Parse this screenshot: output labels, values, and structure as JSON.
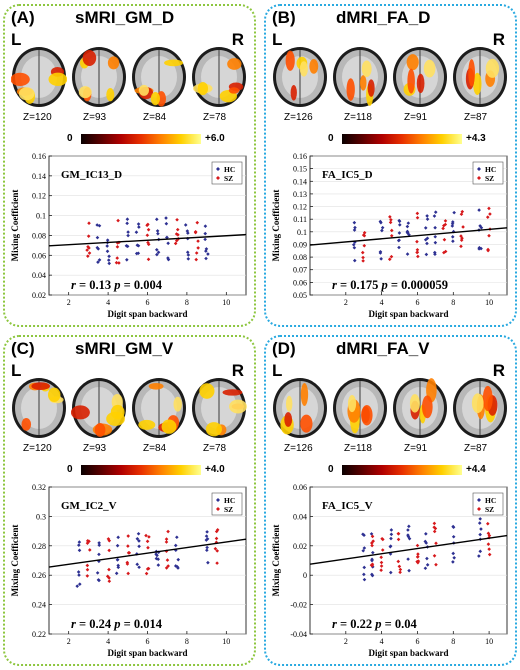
{
  "panels": [
    {
      "label": "(A)",
      "title": "sMRI_GM_D",
      "left_label": "L",
      "right_label": "R",
      "slices": [
        "Z=120",
        "Z=93",
        "Z=84",
        "Z=78"
      ],
      "cbar_min": "0",
      "cbar_max": "+6.0",
      "border_color": "#8dc63f"
    },
    {
      "label": "(B)",
      "title": "dMRI_FA_D",
      "left_label": "L",
      "right_label": "R",
      "slices": [
        "Z=126",
        "Z=118",
        "Z=91",
        "Z=87"
      ],
      "cbar_min": "0",
      "cbar_max": "+4.3",
      "border_color": "#29a9e0"
    },
    {
      "label": "(C)",
      "title": "sMRI_GM_V",
      "left_label": "L",
      "right_label": "R",
      "slices": [
        "Z=120",
        "Z=93",
        "Z=84",
        "Z=78"
      ],
      "cbar_min": "0",
      "cbar_max": "+4.0",
      "border_color": "#8dc63f"
    },
    {
      "label": "(D)",
      "title": "dMRI_FA_V",
      "left_label": "L",
      "right_label": "R",
      "slices": [
        "Z=126",
        "Z=118",
        "Z=91",
        "Z=87"
      ],
      "cbar_min": "0",
      "cbar_max": "+4.4",
      "border_color": "#29a9e0"
    }
  ],
  "chart_data": [
    {
      "type": "scatter",
      "title": "GM_IC13_D",
      "xlabel": "Digit span backward",
      "ylabel": "Mixing Coefficient",
      "xlim": [
        1,
        11
      ],
      "ylim": [
        0.02,
        0.16
      ],
      "xticks": [
        "2",
        "4",
        "6",
        "8",
        "10"
      ],
      "yticks": [
        "0.02",
        "0.04",
        "0.06",
        "0.08",
        "0.1",
        "0.12",
        "0.14",
        "0.16"
      ],
      "legend": [
        "HC",
        "SZ"
      ],
      "series_colors": [
        "#2e3192",
        "#d7191c"
      ],
      "stats": {
        "r": "0.13",
        "p": "0.004"
      },
      "fit": {
        "x": [
          1,
          11
        ],
        "y": [
          0.0695,
          0.0808
        ]
      },
      "scatter": {
        "hc_x": [
          3.5,
          4,
          5,
          5.5,
          6.5,
          7,
          8,
          9
        ],
        "sz_x": [
          3,
          4.5,
          6,
          7.5,
          8.5
        ]
      }
    },
    {
      "type": "scatter",
      "title": "FA_IC5_D",
      "xlabel": "Digit span backward",
      "ylabel": "Mixing Coefficient",
      "xlim": [
        0,
        11
      ],
      "ylim": [
        0.05,
        0.16
      ],
      "xticks": [
        "2",
        "4",
        "6",
        "8",
        "10"
      ],
      "yticks": [
        "0.05",
        "0.06",
        "0.07",
        "0.08",
        "0.09",
        "0.1",
        "0.11",
        "0.12",
        "0.13",
        "0.14",
        "0.15",
        "0.16"
      ],
      "legend": [
        "HC",
        "SZ"
      ],
      "series_colors": [
        "#2e3192",
        "#d7191c"
      ],
      "stats": {
        "r": "0.175",
        "p": "0.000059"
      },
      "fit": {
        "x": [
          0,
          11
        ],
        "y": [
          0.0895,
          0.1032
        ]
      },
      "scatter": {
        "hc_x": [
          2.5,
          4,
          5,
          5.5,
          6.5,
          7,
          8,
          9.5
        ],
        "sz_x": [
          3,
          4.5,
          6,
          7.5,
          8.5,
          10
        ]
      }
    },
    {
      "type": "scatter",
      "title": "GM_IC2_V",
      "xlabel": "Digit span backward",
      "ylabel": "Mixing Coefficient",
      "xlim": [
        1,
        11
      ],
      "ylim": [
        0.22,
        0.32
      ],
      "xticks": [
        "2",
        "4",
        "6",
        "8",
        "10"
      ],
      "yticks": [
        "0.22",
        "0.24",
        "0.26",
        "0.28",
        "0.3",
        "0.32"
      ],
      "legend": [
        "HC",
        "SZ"
      ],
      "series_colors": [
        "#2e3192",
        "#d7191c"
      ],
      "stats": {
        "r": "0.24",
        "p": "0.014"
      },
      "fit": {
        "x": [
          1,
          11
        ],
        "y": [
          0.2655,
          0.2845
        ]
      },
      "scatter": {
        "hc_x": [
          2.5,
          3.5,
          4.5,
          5.5,
          6.5,
          7.5,
          9
        ],
        "sz_x": [
          3,
          4,
          5,
          6,
          7,
          9.5
        ]
      }
    },
    {
      "type": "scatter",
      "title": "FA_IC5_V",
      "xlabel": "Digit span backward",
      "ylabel": "Mixing Coefficient",
      "xlim": [
        0,
        11
      ],
      "ylim": [
        -0.04,
        0.06
      ],
      "xticks": [
        "2",
        "4",
        "6",
        "8",
        "10"
      ],
      "yticks": [
        "-0.04",
        "-0.02",
        "0",
        "0.02",
        "0.04",
        "0.06"
      ],
      "legend": [
        "HC",
        "SZ"
      ],
      "series_colors": [
        "#2e3192",
        "#d7191c"
      ],
      "stats": {
        "r": "0.22",
        "p": "0.04"
      },
      "fit": {
        "x": [
          0,
          11
        ],
        "y": [
          0.0075,
          0.027
        ]
      },
      "scatter": {
        "hc_x": [
          3,
          3.5,
          4.5,
          5.5,
          6.5,
          8,
          9.5
        ],
        "sz_x": [
          3.5,
          4,
          5,
          6,
          7,
          10
        ]
      }
    }
  ]
}
